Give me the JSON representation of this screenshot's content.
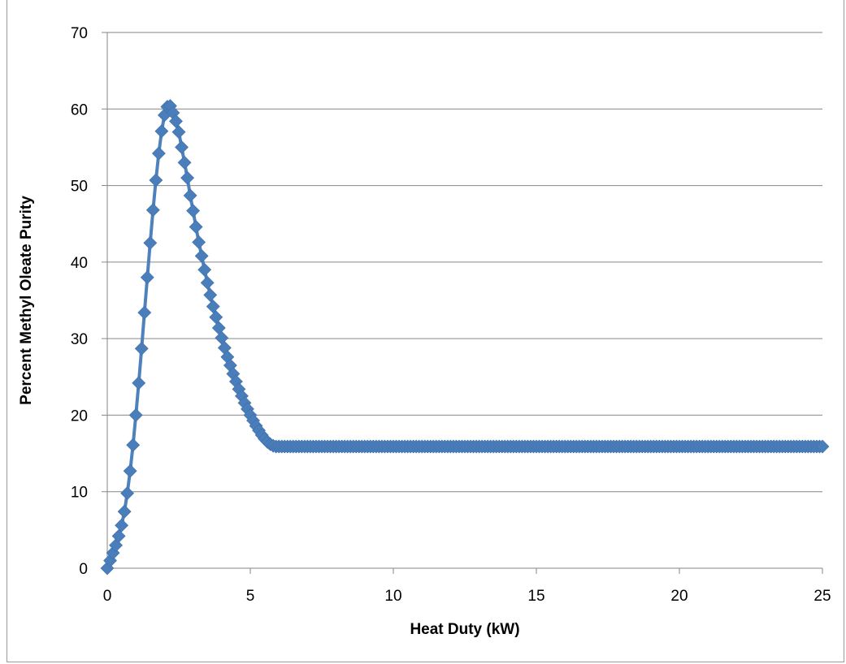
{
  "chart_data": {
    "type": "line",
    "title": "",
    "xlabel": "Heat Duty (kW)",
    "ylabel": "Percent Methyl Oleate Purity",
    "xlim": [
      0,
      25
    ],
    "ylim": [
      0,
      70
    ],
    "x_ticks": [
      0,
      5,
      10,
      15,
      20,
      25
    ],
    "y_ticks": [
      0,
      10,
      20,
      30,
      40,
      50,
      60,
      70
    ],
    "grid": "horizontal",
    "legend": "none",
    "marker": "diamond",
    "series_color": "#4f81bd",
    "marker_color": "#4a7ebb",
    "series": [
      {
        "x": [
          0,
          0.1,
          0.2,
          0.3,
          0.4,
          0.5,
          0.6,
          0.7,
          0.8,
          0.9,
          1.0,
          1.1,
          1.2,
          1.3,
          1.4,
          1.5,
          1.6,
          1.7,
          1.8,
          1.9,
          2.0,
          2.1,
          2.2,
          2.3,
          2.4,
          2.5,
          2.6,
          2.7,
          2.8,
          2.9,
          3.0,
          3.1,
          3.2,
          3.3,
          3.4,
          3.5,
          3.6,
          3.7,
          3.8,
          3.9,
          4.0,
          4.1,
          4.2,
          4.3,
          4.4,
          4.5,
          4.6,
          4.7,
          4.8,
          4.9,
          5.0,
          5.1,
          5.2,
          5.3,
          5.4,
          5.5,
          5.6,
          5.7,
          5.8,
          5.9,
          6.0,
          6.1,
          6.2,
          6.3,
          6.5,
          7,
          8,
          9,
          10,
          11,
          12,
          13,
          14,
          15,
          16,
          17,
          18,
          19,
          20,
          21,
          22,
          23,
          24,
          25
        ],
        "y": [
          0,
          1.0,
          2.0,
          3.0,
          4.2,
          5.6,
          7.4,
          9.8,
          12.7,
          16.1,
          20.0,
          24.2,
          28.7,
          33.4,
          38.0,
          42.5,
          46.8,
          50.7,
          54.2,
          57.1,
          59.2,
          60.3,
          60.4,
          59.5,
          58.4,
          57.0,
          55.0,
          53.0,
          51.0,
          48.7,
          46.7,
          44.6,
          42.6,
          40.8,
          39.0,
          37.3,
          35.7,
          34.2,
          32.8,
          31.4,
          30.1,
          28.8,
          27.6,
          26.5,
          25.4,
          24.4,
          23.4,
          22.5,
          21.6,
          20.8,
          20.0,
          19.3,
          18.6,
          18.0,
          17.4,
          16.9,
          16.5,
          16.2,
          16.0,
          15.9,
          15.9,
          15.9,
          15.9,
          15.9,
          15.9,
          15.9,
          15.9,
          15.9,
          15.9,
          15.9,
          15.9,
          15.9,
          15.9,
          15.9,
          15.9,
          15.9,
          15.9,
          15.9,
          15.9,
          15.9,
          15.9,
          15.9,
          15.9,
          15.9
        ]
      }
    ]
  }
}
